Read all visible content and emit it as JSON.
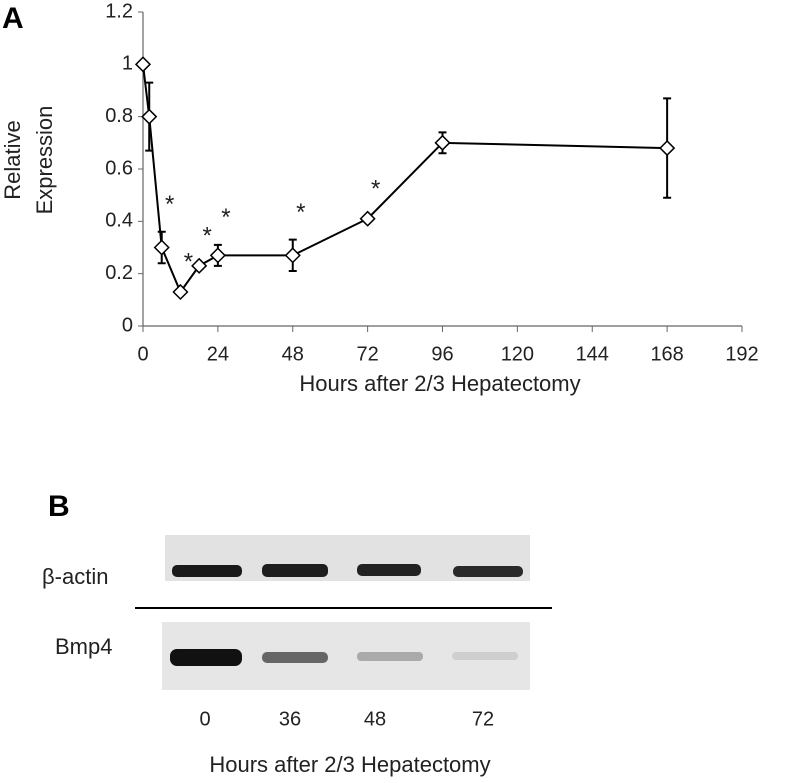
{
  "chart_data": {
    "type": "line",
    "panel_label": "A",
    "xlabel": "Hours after 2/3 Hepatectomy",
    "ylabel": [
      "Relative",
      "Expression"
    ],
    "x": [
      0,
      2,
      6,
      12,
      18,
      24,
      48,
      72,
      96,
      168
    ],
    "series": [
      {
        "color": "#000000",
        "values": [
          1.0,
          0.8,
          0.3,
          0.13,
          0.23,
          0.27,
          0.27,
          0.41,
          0.7,
          0.68
        ],
        "errors": [
          0,
          0.13,
          0.06,
          0.01,
          0.01,
          0.04,
          0.06,
          0.01,
          0.04,
          0.19
        ]
      }
    ],
    "annotations": [
      {
        "text": "*",
        "x": 6
      },
      {
        "text": "*",
        "x": 12
      },
      {
        "text": "*",
        "x": 18
      },
      {
        "text": "*",
        "x": 24
      },
      {
        "text": "*",
        "x": 48
      },
      {
        "text": "*",
        "x": 72
      }
    ],
    "xlim": [
      0,
      192
    ],
    "xticks": [
      0,
      24,
      48,
      72,
      96,
      120,
      144,
      168,
      192
    ],
    "ylim": [
      0,
      1.2
    ],
    "yticks": [
      0,
      0.2,
      0.4,
      0.6,
      0.8,
      1,
      1.2
    ],
    "grid": false
  },
  "blot": {
    "panel_label": "B",
    "rows": [
      "β-actin",
      "Bmp4"
    ],
    "lanes": [
      "0",
      "36",
      "48",
      "72"
    ],
    "xlabel": "Hours after 2/3 Hepatectomy"
  }
}
